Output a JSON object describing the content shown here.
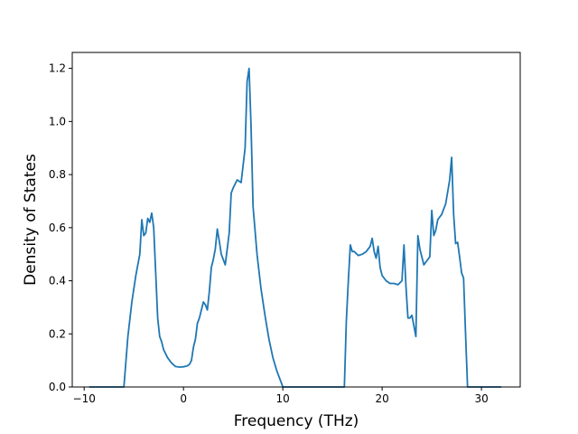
{
  "chart_data": {
    "type": "line",
    "xlabel": "Frequency (THz)",
    "ylabel": "Density of States",
    "xlim": [
      -11.2,
      33.9
    ],
    "ylim": [
      0,
      1.26
    ],
    "x_ticks": [
      -10,
      0,
      10,
      20,
      30
    ],
    "x_tick_labels": [
      "−10",
      "0",
      "10",
      "20",
      "30"
    ],
    "y_ticks": [
      0.0,
      0.2,
      0.4,
      0.6,
      0.8,
      1.0,
      1.2
    ],
    "y_tick_labels": [
      "0.0",
      "0.2",
      "0.4",
      "0.6",
      "0.8",
      "1.0",
      "1.2"
    ],
    "grid": false,
    "line_color": "#1f77b4",
    "series": [
      {
        "x": [
          -9.5,
          -6.0,
          -5.6,
          -5.2,
          -4.8,
          -4.4,
          -4.2,
          -4.0,
          -3.8,
          -3.6,
          -3.4,
          -3.2,
          -3.0,
          -2.8,
          -2.6,
          -2.4,
          -2.2,
          -2.0,
          -1.6,
          -1.2,
          -0.8,
          -0.4,
          0.0,
          0.4,
          0.6,
          0.8,
          1.0,
          1.2,
          1.4,
          1.6,
          2.0,
          2.2,
          2.4,
          2.6,
          2.8,
          3.0,
          3.2,
          3.4,
          3.6,
          3.8,
          4.2,
          4.6,
          4.8,
          5.0,
          5.4,
          5.8,
          6.2,
          6.4,
          6.6,
          6.8,
          7.0,
          7.4,
          7.8,
          8.2,
          8.6,
          9.0,
          9.4,
          9.8,
          10.0,
          16.2,
          16.4,
          16.6,
          16.8,
          17.0,
          17.2,
          17.6,
          18.0,
          18.4,
          18.8,
          19.0,
          19.2,
          19.4,
          19.6,
          19.8,
          20.0,
          20.4,
          20.8,
          21.2,
          21.6,
          22.0,
          22.2,
          22.4,
          22.6,
          22.8,
          23.0,
          23.4,
          23.6,
          23.8,
          24.2,
          24.6,
          24.8,
          25.0,
          25.2,
          25.4,
          25.6,
          26.0,
          26.4,
          26.8,
          27.0,
          27.2,
          27.4,
          27.6,
          27.8,
          28.0,
          28.2,
          28.4,
          28.6,
          28.8,
          32.0
        ],
        "y": [
          0.0,
          0.0,
          0.19,
          0.32,
          0.42,
          0.5,
          0.63,
          0.57,
          0.58,
          0.635,
          0.62,
          0.655,
          0.6,
          0.43,
          0.26,
          0.19,
          0.17,
          0.14,
          0.11,
          0.09,
          0.077,
          0.075,
          0.076,
          0.08,
          0.085,
          0.1,
          0.15,
          0.18,
          0.24,
          0.26,
          0.32,
          0.31,
          0.29,
          0.36,
          0.45,
          0.48,
          0.52,
          0.595,
          0.55,
          0.5,
          0.46,
          0.58,
          0.73,
          0.75,
          0.78,
          0.77,
          0.9,
          1.15,
          1.2,
          0.98,
          0.68,
          0.5,
          0.37,
          0.27,
          0.18,
          0.11,
          0.06,
          0.02,
          0.0,
          0.0,
          0.25,
          0.4,
          0.535,
          0.51,
          0.51,
          0.495,
          0.5,
          0.51,
          0.53,
          0.56,
          0.51,
          0.485,
          0.53,
          0.45,
          0.42,
          0.4,
          0.39,
          0.39,
          0.385,
          0.4,
          0.535,
          0.38,
          0.26,
          0.26,
          0.27,
          0.19,
          0.57,
          0.52,
          0.46,
          0.48,
          0.49,
          0.665,
          0.57,
          0.59,
          0.63,
          0.65,
          0.69,
          0.78,
          0.865,
          0.65,
          0.54,
          0.545,
          0.49,
          0.43,
          0.41,
          0.2,
          0.0,
          0.0,
          0.0
        ]
      }
    ]
  }
}
